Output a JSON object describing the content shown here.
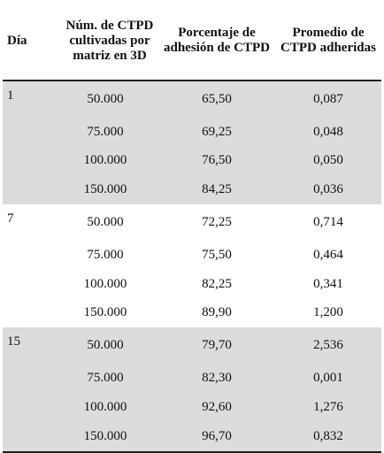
{
  "table": {
    "headers": {
      "dia": "Día",
      "num": "Núm. de CTPD cultivadas por matriz en 3D",
      "pct": "Porcentaje de adhesión de CTPD",
      "avg": "Promedio de CTPD adheridas"
    },
    "groups": [
      {
        "dia": "1",
        "rows": [
          {
            "num": "50.000",
            "pct": "65,50",
            "avg": "0,087"
          },
          {
            "num": "75.000",
            "pct": "69,25",
            "avg": "0,048"
          },
          {
            "num": "100.000",
            "pct": "76,50",
            "avg": "0,050"
          },
          {
            "num": "150.000",
            "pct": "84,25",
            "avg": "0,036"
          }
        ]
      },
      {
        "dia": "7",
        "rows": [
          {
            "num": "50.000",
            "pct": "72,25",
            "avg": "0,714"
          },
          {
            "num": "75.000",
            "pct": "75,50",
            "avg": "0,464"
          },
          {
            "num": "100.000",
            "pct": "82,25",
            "avg": "0,341"
          },
          {
            "num": "150.000",
            "pct": "89,90",
            "avg": "1,200"
          }
        ]
      },
      {
        "dia": "15",
        "rows": [
          {
            "num": "50.000",
            "pct": "79,70",
            "avg": "2,536"
          },
          {
            "num": "75.000",
            "pct": "82,30",
            "avg": "0,001"
          },
          {
            "num": "100.000",
            "pct": "92,60",
            "avg": "1,276"
          },
          {
            "num": "150.000",
            "pct": "96,70",
            "avg": "0,832"
          }
        ]
      }
    ],
    "shading": {
      "shaded": "#dcdcdc",
      "plain": "#ffffff"
    }
  }
}
